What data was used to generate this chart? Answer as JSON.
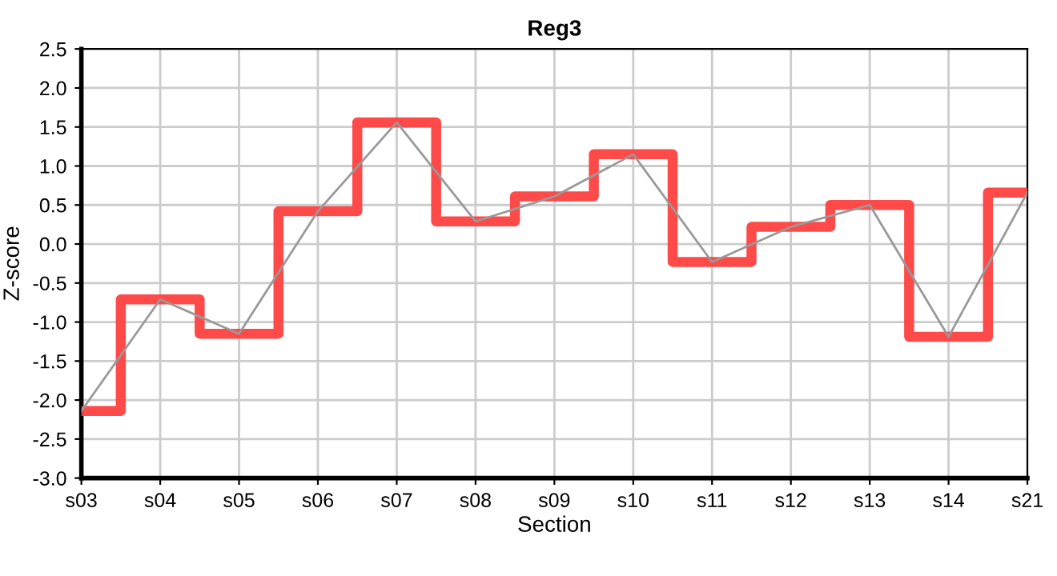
{
  "chart_data": {
    "type": "step",
    "title": "Reg3",
    "xlabel": "Section",
    "ylabel": "Z-score",
    "categories": [
      "s03",
      "s04",
      "s05",
      "s06",
      "s07",
      "s08",
      "s09",
      "s10",
      "s11",
      "s12",
      "s13",
      "s14",
      "s21"
    ],
    "series": [
      {
        "color": "#ff4040",
        "values": [
          -2.14,
          -0.71,
          -1.15,
          0.42,
          1.56,
          0.29,
          0.61,
          1.15,
          -0.23,
          0.22,
          0.5,
          -1.19,
          0.66
        ]
      },
      {
        "type": "line",
        "color": "#999999",
        "values": [
          -2.14,
          -0.71,
          -1.15,
          0.42,
          1.56,
          0.29,
          0.61,
          1.15,
          -0.23,
          0.22,
          0.5,
          -1.19,
          0.66
        ]
      }
    ],
    "ylim": [
      -3.0,
      2.5
    ],
    "yticks": [
      {
        "value": -3,
        "label": "-3.0"
      },
      {
        "value": -2.5,
        "label": "-2.5"
      },
      {
        "value": -2,
        "label": "-2.0"
      },
      {
        "value": -1.5,
        "label": "-1.5"
      },
      {
        "value": -1,
        "label": "-1.0"
      },
      {
        "value": -0.5,
        "label": "-0.5"
      },
      {
        "value": 0,
        "label": "0.0"
      },
      {
        "value": 0.5,
        "label": "0.5"
      },
      {
        "value": 1,
        "label": "1.0"
      },
      {
        "value": 1.5,
        "label": "1.5"
      },
      {
        "value": 2,
        "label": "2.0"
      },
      {
        "value": 2.5,
        "label": "2.5"
      }
    ],
    "grid": true,
    "legend": false
  }
}
